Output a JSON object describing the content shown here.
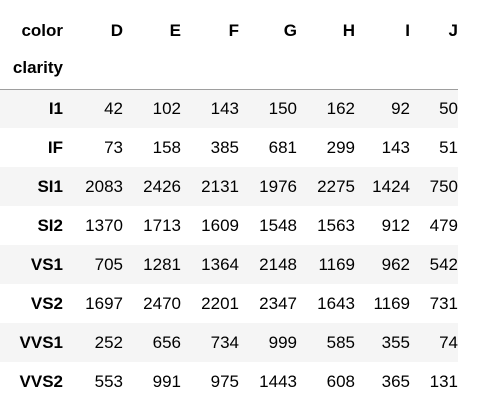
{
  "table": {
    "columns_name": "color",
    "index_name": "clarity",
    "columns": [
      "D",
      "E",
      "F",
      "G",
      "H",
      "I",
      "J"
    ],
    "rows": [
      {
        "index": "I1",
        "values": [
          "42",
          "102",
          "143",
          "150",
          "162",
          "92",
          "50"
        ]
      },
      {
        "index": "IF",
        "values": [
          "73",
          "158",
          "385",
          "681",
          "299",
          "143",
          "51"
        ]
      },
      {
        "index": "SI1",
        "values": [
          "2083",
          "2426",
          "2131",
          "1976",
          "2275",
          "1424",
          "750"
        ]
      },
      {
        "index": "SI2",
        "values": [
          "1370",
          "1713",
          "1609",
          "1548",
          "1563",
          "912",
          "479"
        ]
      },
      {
        "index": "VS1",
        "values": [
          "705",
          "1281",
          "1364",
          "2148",
          "1169",
          "962",
          "542"
        ]
      },
      {
        "index": "VS2",
        "values": [
          "1697",
          "2470",
          "2201",
          "2347",
          "1643",
          "1169",
          "731"
        ]
      },
      {
        "index": "VVS1",
        "values": [
          "252",
          "656",
          "734",
          "999",
          "585",
          "355",
          "74"
        ]
      },
      {
        "index": "VVS2",
        "values": [
          "553",
          "991",
          "975",
          "1443",
          "608",
          "365",
          "131"
        ]
      }
    ]
  }
}
